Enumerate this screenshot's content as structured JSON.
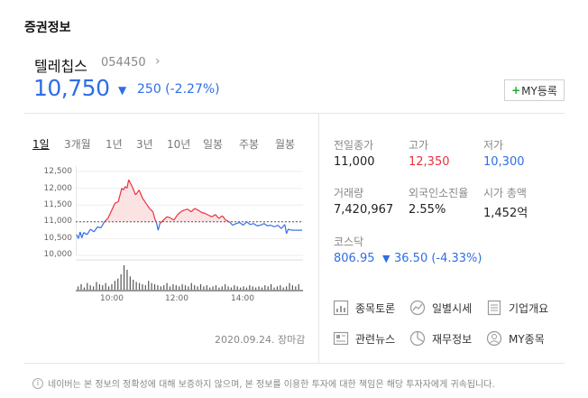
{
  "section_title": "증권정보",
  "stock": {
    "name": "텔레칩스",
    "code": "054450",
    "price": "10,750",
    "change": "250 (-2.27%)",
    "my_button": "MY등록"
  },
  "chart_tabs": [
    "1일",
    "3개월",
    "1년",
    "3년",
    "10년",
    "일봉",
    "주봉",
    "월봉"
  ],
  "active_tab": 0,
  "chart_data": {
    "type": "line",
    "y_ticks": [
      "12,500",
      "12,000",
      "11,500",
      "11,000",
      "10,500",
      "10,000"
    ],
    "x_ticks": [
      "10:00",
      "12:00",
      "14:00"
    ],
    "ylim": [
      10000,
      12500
    ],
    "baseline": 11000,
    "xlim": [
      9,
      15.5
    ],
    "series": [
      {
        "values": [
          [
            9.0,
            10620
          ],
          [
            9.05,
            10500
          ],
          [
            9.1,
            10700
          ],
          [
            9.15,
            10520
          ],
          [
            9.2,
            10680
          ],
          [
            9.3,
            10620
          ],
          [
            9.4,
            10780
          ],
          [
            9.5,
            10700
          ],
          [
            9.6,
            10850
          ],
          [
            9.7,
            10820
          ],
          [
            9.8,
            11000
          ],
          [
            9.9,
            11100
          ],
          [
            10.0,
            11320
          ],
          [
            10.1,
            11550
          ],
          [
            10.2,
            11600
          ],
          [
            10.3,
            12000
          ],
          [
            10.35,
            11950
          ],
          [
            10.4,
            12050
          ],
          [
            10.45,
            12000
          ],
          [
            10.5,
            12250
          ],
          [
            10.55,
            12150
          ],
          [
            10.6,
            12050
          ],
          [
            10.7,
            11800
          ],
          [
            10.8,
            11950
          ],
          [
            10.9,
            11700
          ],
          [
            11.0,
            11550
          ],
          [
            11.1,
            11400
          ],
          [
            11.2,
            11300
          ],
          [
            11.25,
            11100
          ],
          [
            11.3,
            10980
          ],
          [
            11.35,
            10750
          ],
          [
            11.4,
            10950
          ],
          [
            11.5,
            11050
          ],
          [
            11.6,
            11150
          ],
          [
            11.7,
            11120
          ],
          [
            11.8,
            11050
          ],
          [
            11.9,
            11200
          ],
          [
            12.0,
            11300
          ],
          [
            12.1,
            11350
          ],
          [
            12.2,
            11380
          ],
          [
            12.3,
            11300
          ],
          [
            12.4,
            11400
          ],
          [
            12.5,
            11350
          ],
          [
            12.6,
            11280
          ],
          [
            12.7,
            11250
          ],
          [
            12.8,
            11200
          ],
          [
            12.9,
            11150
          ],
          [
            13.0,
            11220
          ],
          [
            13.1,
            11100
          ],
          [
            13.2,
            11180
          ],
          [
            13.3,
            11050
          ],
          [
            13.4,
            11000
          ],
          [
            13.5,
            10900
          ],
          [
            13.6,
            10950
          ],
          [
            13.7,
            10980
          ],
          [
            13.8,
            10900
          ],
          [
            13.9,
            11000
          ],
          [
            14.0,
            10920
          ],
          [
            14.1,
            10950
          ],
          [
            14.2,
            10880
          ],
          [
            14.3,
            10900
          ],
          [
            14.4,
            10950
          ],
          [
            14.5,
            10880
          ],
          [
            14.6,
            10900
          ],
          [
            14.7,
            10850
          ],
          [
            14.8,
            10900
          ],
          [
            14.9,
            10800
          ],
          [
            15.0,
            10920
          ],
          [
            15.05,
            10650
          ],
          [
            15.1,
            10780
          ],
          [
            15.2,
            10750
          ],
          [
            15.3,
            10750
          ],
          [
            15.5,
            10750
          ]
        ]
      }
    ],
    "volume": [
      3,
      5,
      2,
      6,
      4,
      3,
      7,
      5,
      4,
      6,
      3,
      5,
      8,
      10,
      14,
      22,
      18,
      12,
      9,
      7,
      6,
      5,
      4,
      8,
      6,
      5,
      4,
      3,
      4,
      6,
      3,
      5,
      4,
      3,
      5,
      4,
      3,
      6,
      4,
      3,
      5,
      3,
      4,
      2,
      3,
      4,
      2,
      3,
      5,
      3,
      2,
      4,
      3,
      2,
      3,
      2,
      4,
      3,
      2,
      3,
      2,
      4,
      3,
      5,
      2,
      3,
      4,
      2,
      3,
      6,
      4,
      3,
      5
    ]
  },
  "chart_date": "2020.09.24. 장마감",
  "stats": [
    {
      "label": "전일종가",
      "value": "11,000",
      "tone": "normal"
    },
    {
      "label": "고가",
      "value": "12,350",
      "tone": "red"
    },
    {
      "label": "저가",
      "value": "10,300",
      "tone": "blue"
    },
    {
      "label": "거래량",
      "value": "7,420,967",
      "tone": "normal"
    },
    {
      "label": "외국인소진율",
      "value": "2.55%",
      "tone": "normal"
    },
    {
      "label": "시가 총액",
      "value": "1,452억",
      "tone": "normal"
    }
  ],
  "kospi": {
    "label": "코스닥",
    "value": "806.95",
    "change": "36.50 (-4.33%)"
  },
  "links": [
    {
      "label": "종목토론",
      "icon": "chart-bar-icon"
    },
    {
      "label": "일별시세",
      "icon": "trend-circle-icon"
    },
    {
      "label": "기업개요",
      "icon": "document-list-icon"
    },
    {
      "label": "관련뉴스",
      "icon": "news-icon"
    },
    {
      "label": "재무정보",
      "icon": "pie-chart-icon"
    },
    {
      "label": "MY종목",
      "icon": "person-icon"
    }
  ],
  "disclaimer": "네이버는 본 정보의 정확성에 대해 보증하지 않으며, 본 정보를 이용한 투자에 대한 책임은 해당 투자자에게 귀속됩니다.",
  "colors": {
    "up": "#e8323c",
    "down": "#2f6ee6",
    "fill_up": "#fbe3e4"
  }
}
